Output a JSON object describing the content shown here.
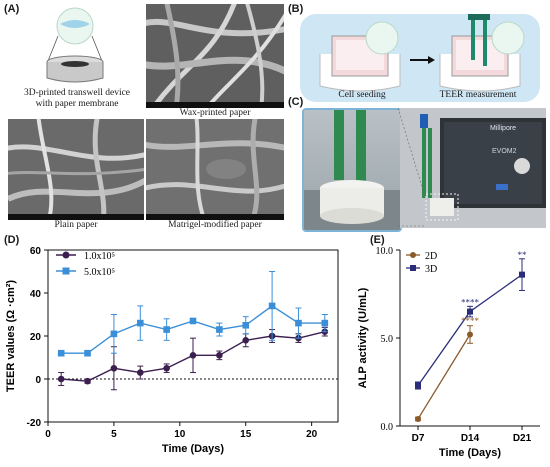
{
  "panels": {
    "A": {
      "label": "(A)",
      "device_caption": [
        "3D-printed transwell device",
        "with paper membrane"
      ],
      "wax_caption": "Wax-printed paper",
      "plain_caption": "Plain paper",
      "matrigel_caption": "Matrigel-modified paper"
    },
    "B": {
      "label": "(B)",
      "step1": "Cell seeding",
      "step2": "TEER measurement"
    },
    "C": {
      "label": "(C)",
      "instrument_model": "EVOM2",
      "instrument_brand": "Millipore"
    },
    "D": {
      "label": "(D)"
    },
    "E": {
      "label": "(E)"
    }
  },
  "colors": {
    "series_1": "#3b1f4f",
    "series_2": "#3a8fd8",
    "sem_gray": "#6e6e6e",
    "sky_blue": "#cfe6f4",
    "alp_2d": "#8b5a2b",
    "alp_3d": "#2b2d7a"
  },
  "chart_data": [
    {
      "type": "line",
      "panel": "D",
      "xlabel": "Time (Days)",
      "ylabel": "TEER values (Ω ·cm²)",
      "xlim": [
        0,
        22
      ],
      "ylim": [
        -20,
        60
      ],
      "xticks": [
        "0",
        "5",
        "10",
        "15",
        "20"
      ],
      "yticks": [
        "-20",
        "0",
        "20",
        "40",
        "60"
      ],
      "reference_line_y": 0,
      "legend_position": "top-left",
      "series": [
        {
          "name": "1.0x10⁵",
          "marker": "circle",
          "x": [
            1,
            3,
            5,
            7,
            9,
            11,
            13,
            15,
            17,
            19,
            21
          ],
          "y": [
            0,
            -1,
            5,
            3,
            5,
            11,
            11,
            18,
            20,
            19,
            22
          ],
          "err": [
            3,
            1,
            10,
            3,
            2,
            8,
            2,
            3,
            3,
            2,
            2
          ]
        },
        {
          "name": "5.0x10⁵",
          "marker": "square",
          "x": [
            1,
            3,
            5,
            7,
            9,
            11,
            13,
            15,
            17,
            19,
            21
          ],
          "y": [
            12,
            12,
            21,
            26,
            23,
            27,
            23,
            25,
            34,
            26,
            26
          ],
          "err": [
            1,
            1,
            9,
            8,
            5,
            1,
            3,
            4,
            16,
            7,
            4
          ]
        }
      ]
    },
    {
      "type": "line",
      "panel": "E",
      "xlabel": "Time (Days)",
      "ylabel": "ALP activity (U/mL)",
      "categories": [
        "D7",
        "D14",
        "D21"
      ],
      "ylim": [
        0,
        10
      ],
      "yticks": [
        "0.0",
        "5.0",
        "10.0"
      ],
      "legend_position": "top-left",
      "series": [
        {
          "name": "2D",
          "marker": "circle",
          "values": [
            0.4,
            5.2,
            null
          ],
          "err": [
            0.1,
            0.5,
            null
          ]
        },
        {
          "name": "3D",
          "marker": "square",
          "values": [
            2.3,
            6.5,
            8.6
          ],
          "err": [
            0.2,
            0.3,
            0.9
          ]
        }
      ],
      "annotations": [
        {
          "text": "****",
          "category": "D14",
          "value": 6.85
        },
        {
          "text": "****",
          "category": "D14",
          "value": 5.8
        },
        {
          "text": "**",
          "category": "D21",
          "value": 9.55
        }
      ]
    }
  ]
}
